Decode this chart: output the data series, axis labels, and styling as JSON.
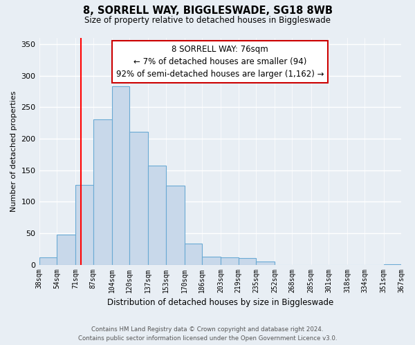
{
  "title": "8, SORRELL WAY, BIGGLESWADE, SG18 8WB",
  "subtitle": "Size of property relative to detached houses in Biggleswade",
  "xlabel": "Distribution of detached houses by size in Biggleswade",
  "ylabel": "Number of detached properties",
  "bar_color": "#c8d8ea",
  "bar_edge_color": "#6aaad4",
  "property_line_x": 76,
  "property_line_color": "red",
  "annotation_title": "8 SORRELL WAY: 76sqm",
  "annotation_line1": "← 7% of detached houses are smaller (94)",
  "annotation_line2": "92% of semi-detached houses are larger (1,162) →",
  "annotation_box_facecolor": "white",
  "annotation_box_edgecolor": "#cc0000",
  "bin_edges": [
    38,
    54,
    71,
    87,
    104,
    120,
    137,
    153,
    170,
    186,
    203,
    219,
    235,
    252,
    268,
    285,
    301,
    318,
    334,
    351,
    367
  ],
  "bin_heights": [
    12,
    48,
    127,
    231,
    283,
    211,
    157,
    126,
    34,
    13,
    12,
    11,
    5,
    0,
    0,
    0,
    0,
    0,
    0,
    1
  ],
  "ylim": [
    0,
    360
  ],
  "yticks": [
    0,
    50,
    100,
    150,
    200,
    250,
    300,
    350
  ],
  "footer1": "Contains HM Land Registry data © Crown copyright and database right 2024.",
  "footer2": "Contains public sector information licensed under the Open Government Licence v3.0.",
  "background_color": "#e8eef4"
}
